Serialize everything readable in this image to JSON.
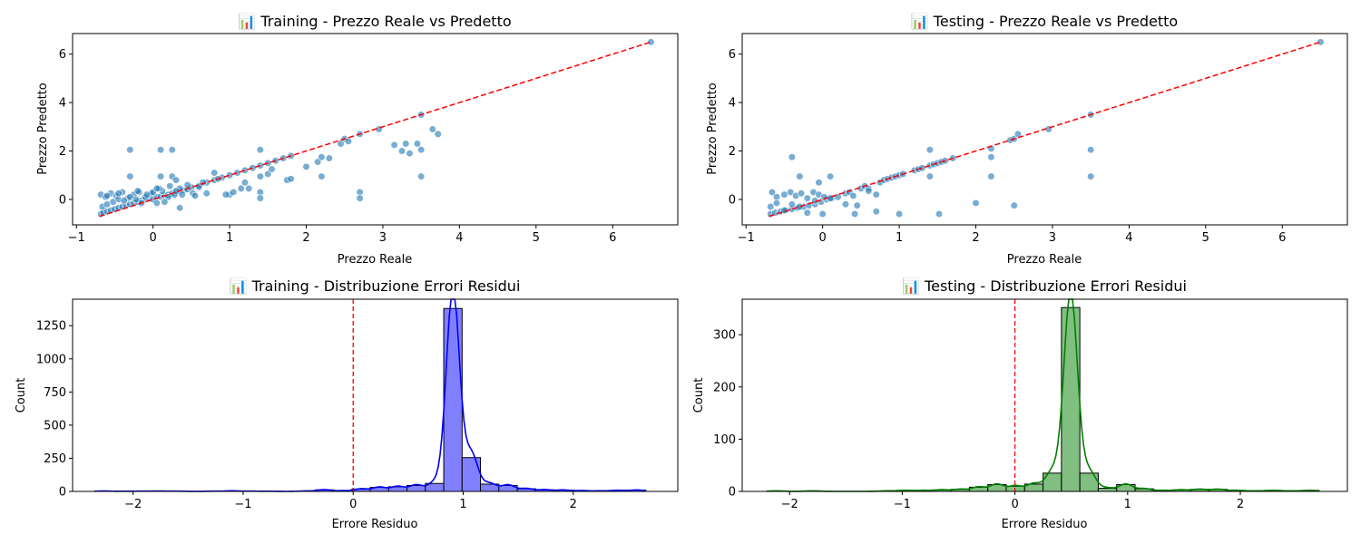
{
  "figure": {
    "background": "#ffffff"
  },
  "chart_data": [
    {
      "type": "scatter",
      "title": "📊 Training - Prezzo Reale vs Predetto",
      "xlabel": "Prezzo Reale",
      "ylabel": "Prezzo Predetto",
      "xlim": [
        -1.05,
        6.85
      ],
      "ylim": [
        -1.05,
        6.85
      ],
      "xticks": [
        -1,
        0,
        1,
        2,
        3,
        4,
        5,
        6
      ],
      "yticks": [
        0,
        2,
        4,
        6
      ],
      "ylim_display": [
        -1.05,
        6.9
      ],
      "grid": false,
      "point_color": "#1f77b4",
      "reference_line": {
        "color": "#ff0000",
        "style": "dashed",
        "from": [
          -0.7,
          -0.7
        ],
        "to": [
          6.5,
          6.5
        ]
      },
      "series": [
        {
          "x": [
            -0.68,
            -0.65,
            -0.6,
            -0.55,
            -0.5,
            -0.45,
            -0.4,
            -0.35,
            -0.3,
            -0.25,
            -0.2,
            -0.15,
            -0.1,
            -0.05,
            0.0,
            0.05,
            0.1,
            0.15,
            0.2,
            0.25,
            0.3,
            0.35,
            0.4,
            0.45,
            0.5,
            -0.68,
            -0.62,
            -0.55,
            -0.48,
            -0.4,
            -0.33,
            -0.25,
            -0.18,
            -0.1,
            -0.02,
            0.05,
            0.12,
            0.2,
            0.28,
            0.35,
            -0.66,
            -0.6,
            -0.52,
            -0.45,
            -0.38,
            -0.3,
            -0.22,
            -0.15,
            -0.08,
            0.0,
            0.08,
            0.15,
            0.22,
            0.3,
            0.38,
            0.45,
            0.52,
            0.6,
            0.7,
            0.8,
            0.9,
            1.0,
            1.1,
            1.2,
            1.3,
            1.4,
            1.5,
            1.6,
            1.7,
            1.8,
            -0.3,
            -0.3,
            0.1,
            0.1,
            0.25,
            0.25,
            0.3,
            0.6,
            0.8,
            0.85,
            1.0,
            1.05,
            1.2,
            1.25,
            1.4,
            1.4,
            1.4,
            1.4,
            1.5,
            1.55,
            1.75,
            1.8,
            2.0,
            2.15,
            2.2,
            2.2,
            2.3,
            2.45,
            2.5,
            2.55,
            2.7,
            2.7,
            2.7,
            2.95,
            3.15,
            3.25,
            3.3,
            3.35,
            3.45,
            3.5,
            3.5,
            3.5,
            3.65,
            3.72,
            6.5,
            -0.6,
            -0.45,
            -0.2,
            0.05,
            0.35,
            0.65,
            0.95,
            1.15,
            0.7,
            0.55
          ],
          "y": [
            -0.6,
            -0.55,
            -0.5,
            -0.45,
            -0.4,
            -0.35,
            -0.3,
            -0.25,
            -0.2,
            -0.15,
            -0.1,
            -0.05,
            0.0,
            0.05,
            0.0,
            0.1,
            0.12,
            0.18,
            0.2,
            0.25,
            0.28,
            0.35,
            0.38,
            0.42,
            0.5,
            0.2,
            0.1,
            0.25,
            0.15,
            0.3,
            0.05,
            0.2,
            0.3,
            0.1,
            0.25,
            -0.15,
            0.35,
            0.1,
            0.2,
            0.45,
            -0.3,
            -0.2,
            -0.1,
            0.0,
            -0.05,
            0.1,
            0.0,
            -0.15,
            0.2,
            0.3,
            0.45,
            -0.1,
            0.55,
            0.35,
            0.2,
            0.6,
            0.25,
            0.5,
            0.7,
            0.8,
            0.9,
            1.0,
            1.1,
            1.2,
            1.3,
            1.4,
            1.5,
            1.6,
            1.7,
            1.8,
            2.05,
            0.95,
            2.05,
            0.95,
            2.05,
            0.95,
            0.8,
            0.55,
            1.1,
            0.85,
            0.2,
            0.3,
            0.7,
            0.45,
            2.05,
            0.95,
            0.3,
            0.05,
            1.05,
            1.25,
            0.8,
            0.85,
            1.35,
            1.55,
            0.95,
            1.75,
            1.7,
            2.3,
            2.5,
            2.4,
            2.7,
            0.3,
            0.05,
            2.9,
            2.25,
            2.0,
            2.3,
            1.9,
            2.3,
            3.5,
            2.05,
            0.95,
            2.9,
            2.7,
            6.5,
            0.15,
            0.25,
            0.35,
            0.45,
            -0.35,
            0.7,
            0.2,
            0.45,
            0.25,
            0.15
          ]
        }
      ]
    },
    {
      "type": "scatter",
      "title": "📊 Testing - Prezzo Reale vs Predetto",
      "xlabel": "Prezzo Reale",
      "ylabel": "Prezzo Predetto",
      "xlim": [
        -1.05,
        6.85
      ],
      "ylim": [
        -1.05,
        6.85
      ],
      "xticks": [
        -1,
        0,
        1,
        2,
        3,
        4,
        5,
        6
      ],
      "yticks": [
        0,
        2,
        4,
        6
      ],
      "grid": false,
      "point_color": "#1f77b4",
      "reference_line": {
        "color": "#ff0000",
        "style": "dashed",
        "from": [
          -0.7,
          -0.7
        ],
        "to": [
          6.5,
          6.5
        ]
      },
      "series": [
        {
          "x": [
            -0.68,
            -0.62,
            -0.55,
            -0.48,
            -0.4,
            -0.33,
            -0.25,
            -0.18,
            -0.1,
            -0.02,
            0.05,
            0.12,
            -0.66,
            -0.6,
            -0.5,
            -0.42,
            -0.35,
            -0.28,
            -0.2,
            -0.12,
            -0.05,
            0.02,
            0.1,
            -0.68,
            -0.6,
            -0.5,
            -0.4,
            -0.3,
            -0.2,
            -0.1,
            -0.4,
            -0.3,
            -0.05,
            0.0,
            0.1,
            0.3,
            0.35,
            0.4,
            0.42,
            0.45,
            0.5,
            0.55,
            0.6,
            0.7,
            0.7,
            0.75,
            0.8,
            0.85,
            0.9,
            0.95,
            1.0,
            1.0,
            1.05,
            1.2,
            1.25,
            1.3,
            1.4,
            1.4,
            1.4,
            1.45,
            1.5,
            1.55,
            1.6,
            1.7,
            1.52,
            2.0,
            2.2,
            2.2,
            2.2,
            2.45,
            2.5,
            2.55,
            2.5,
            2.95,
            3.5,
            3.5,
            3.5,
            6.5,
            0.2,
            0.3,
            0.6
          ],
          "y": [
            -0.6,
            -0.55,
            -0.5,
            -0.45,
            -0.4,
            -0.35,
            -0.3,
            -0.25,
            -0.2,
            -0.1,
            0.0,
            0.05,
            0.3,
            0.1,
            0.2,
            0.3,
            0.15,
            0.25,
            0.05,
            0.3,
            0.2,
            0.1,
            0.05,
            -0.3,
            -0.15,
            -0.45,
            -0.2,
            -0.3,
            -0.55,
            -0.05,
            1.75,
            0.95,
            0.7,
            -0.6,
            0.95,
            0.25,
            0.3,
            0.15,
            -0.6,
            -0.25,
            0.45,
            0.55,
            0.45,
            -0.5,
            0.2,
            0.7,
            0.8,
            0.85,
            0.9,
            0.95,
            1.0,
            -0.6,
            1.05,
            1.2,
            1.25,
            1.3,
            2.05,
            1.4,
            0.95,
            1.45,
            1.5,
            1.55,
            1.6,
            1.7,
            -0.6,
            -0.15,
            2.1,
            1.75,
            0.95,
            2.45,
            2.5,
            2.7,
            -0.25,
            2.9,
            3.5,
            2.05,
            0.95,
            6.5,
            0.1,
            -0.2,
            0.35
          ]
        }
      ]
    },
    {
      "type": "histogram",
      "title": "📊 Training - Distribuzione Errori Residui",
      "xlabel": "Errore Residuo",
      "ylabel": "Count",
      "xlim": [
        -2.55,
        2.95
      ],
      "ylim": [
        0,
        1450
      ],
      "xticks": [
        -2,
        -1,
        0,
        1,
        2
      ],
      "yticks": [
        0,
        250,
        500,
        750,
        1000,
        1250
      ],
      "bar_color": "#8080ff",
      "kde_color": "#0000ff",
      "vline": {
        "x": 0,
        "color": "#ff0000",
        "style": "dashed"
      },
      "bin_start": -2.35,
      "bin_width": 0.167,
      "counts": [
        3,
        1,
        2,
        3,
        2,
        0,
        2,
        4,
        2,
        1,
        0,
        3,
        12,
        5,
        18,
        30,
        35,
        45,
        60,
        1380,
        255,
        55,
        45,
        20,
        12,
        10,
        6,
        4,
        8,
        10
      ]
    },
    {
      "type": "histogram",
      "title": "📊 Testing - Distribuzione Errori Residui",
      "xlabel": "Errore Residuo",
      "ylabel": "Count",
      "xlim": [
        -2.42,
        2.95
      ],
      "ylim": [
        0,
        368
      ],
      "xticks": [
        -2,
        -1,
        0,
        1,
        2
      ],
      "yticks": [
        0,
        100,
        200,
        300
      ],
      "bar_color": "#80bf80",
      "kde_color": "#008000",
      "vline": {
        "x": 0,
        "color": "#ff0000",
        "style": "dashed"
      },
      "bin_start": -2.2,
      "bin_width": 0.1633,
      "counts": [
        1,
        0,
        1,
        0,
        0,
        0,
        1,
        2,
        2,
        3,
        4,
        8,
        13,
        10,
        14,
        35,
        352,
        35,
        6,
        13,
        5,
        2,
        3,
        4,
        4,
        2,
        1,
        2,
        1,
        2
      ]
    }
  ]
}
